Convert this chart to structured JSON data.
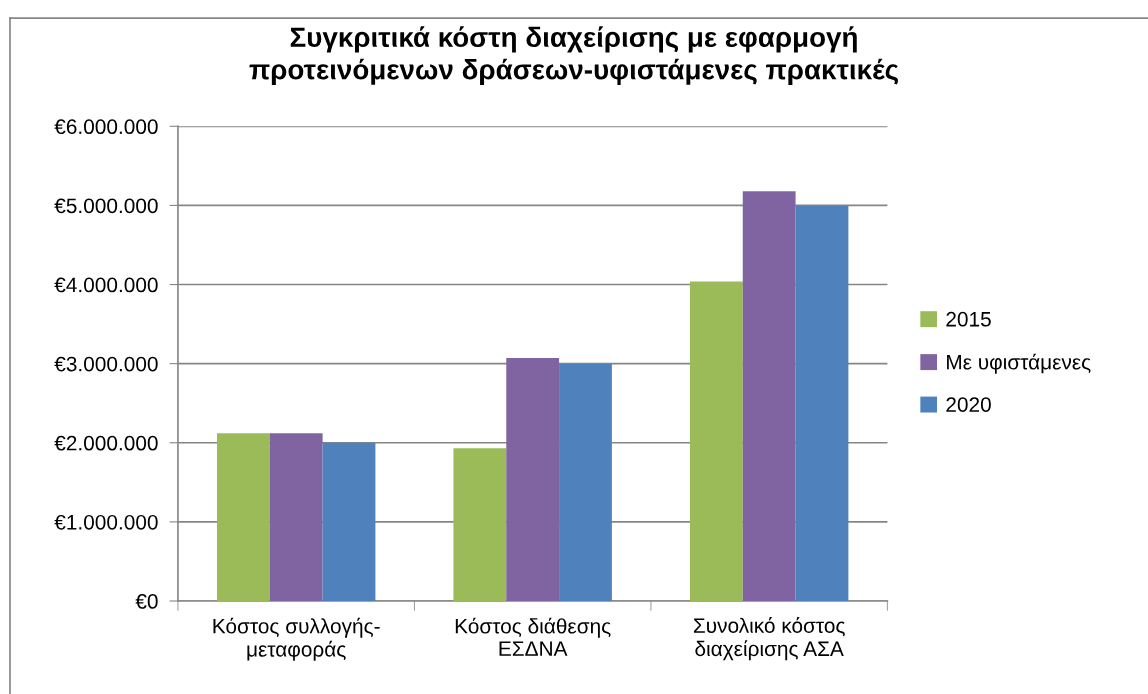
{
  "chart_data": {
    "type": "bar",
    "title": "Συγκριτικά κόστη διαχείρισης με εφαρμογή\nπροτεινόμενων δράσεων-υφιστάμενες πρακτικές",
    "categories": [
      "Κόστος συλλογής-\nμεταφοράς",
      "Κόστος διάθεσης\nΕΣΔΝΑ",
      "Συνολικό κόστος\nδιαχείρισης ΑΣΑ"
    ],
    "series": [
      {
        "name": "2015",
        "color": "#9bbb59",
        "values": [
          2120000,
          1930000,
          4040000
        ]
      },
      {
        "name": "Με υφιστάμενες",
        "color": "#8064a2",
        "values": [
          2120000,
          3070000,
          5180000
        ]
      },
      {
        "name": "2020",
        "color": "#4f81bd",
        "values": [
          2000000,
          3000000,
          5000000
        ]
      }
    ],
    "ylim": [
      0,
      6000000
    ],
    "yticks": [
      {
        "value": 0,
        "label": "€0"
      },
      {
        "value": 1000000,
        "label": "€1.000.000"
      },
      {
        "value": 2000000,
        "label": "€2.000.000"
      },
      {
        "value": 3000000,
        "label": "€3.000.000"
      },
      {
        "value": 4000000,
        "label": "€4.000.000"
      },
      {
        "value": 5000000,
        "label": "€5.000.000"
      },
      {
        "value": 6000000,
        "label": "€6.000.000"
      }
    ],
    "grid": "y",
    "legend": "right"
  }
}
